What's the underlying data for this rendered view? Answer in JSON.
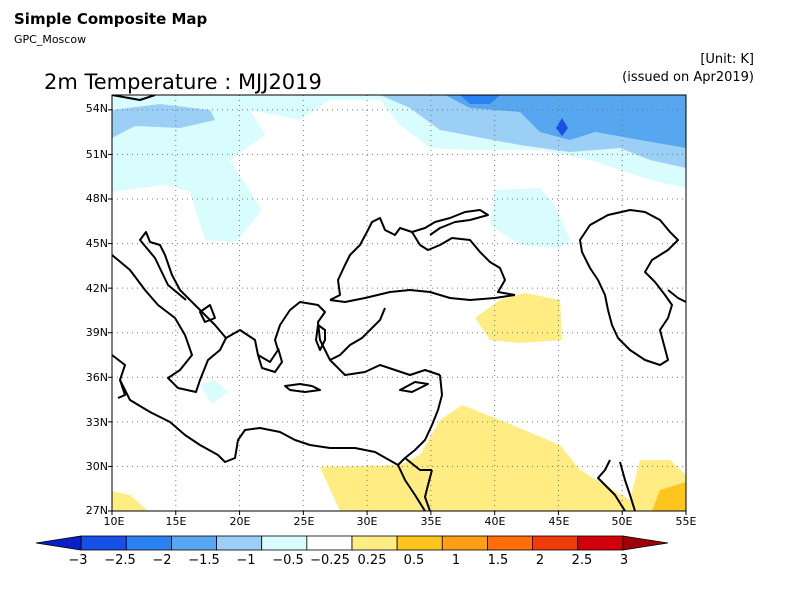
{
  "header": {
    "title": "Simple Composite Map",
    "subtitle": "GPC_Moscow",
    "unit": "[Unit: K]",
    "issued": "(issued on Apr2019)"
  },
  "map": {
    "title": "2m Temperature : MJJ2019",
    "lon_range": [
      10,
      55
    ],
    "lat_range": [
      27,
      55
    ],
    "lat_labels": [
      "54N",
      "51N",
      "48N",
      "45N",
      "42N",
      "39N",
      "36N",
      "33N",
      "30N",
      "27N"
    ],
    "lon_labels": [
      "10E",
      "15E",
      "20E",
      "25E",
      "30E",
      "35E",
      "40E",
      "45E",
      "50E",
      "55E"
    ],
    "gridlines": "dotted"
  },
  "colorbar": {
    "labels": [
      "−3",
      "−2.5",
      "−2",
      "−1.5",
      "−1",
      "−0.5",
      "−0.25",
      "0.25",
      "0.5",
      "1",
      "1.5",
      "2",
      "2.5",
      "3"
    ],
    "colors": [
      "#0a1fc8",
      "#1650e8",
      "#2a82f0",
      "#57a7f0",
      "#9ccff5",
      "#d9fcff",
      "#ffffff",
      "#ffec82",
      "#ffc51e",
      "#ffa014",
      "#ff6e0a",
      "#f03c0a",
      "#d2000a",
      "#a0000a"
    ]
  }
}
